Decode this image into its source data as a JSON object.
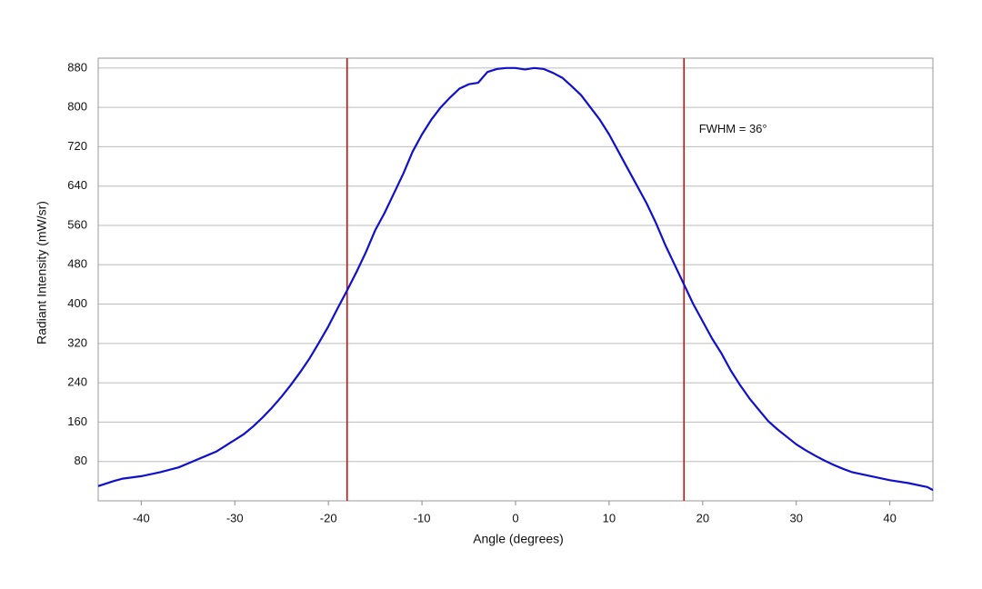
{
  "chart_data": {
    "type": "line",
    "xlabel": "Angle (degrees)",
    "ylabel": "Radiant Intensity (mW/sr)",
    "xlim": [
      -44.6,
      44.6
    ],
    "ylim": [
      0,
      900
    ],
    "xticks": [
      -40,
      -30,
      -20,
      -10,
      0,
      10,
      20,
      30,
      40
    ],
    "yticks": [
      80,
      160,
      240,
      320,
      400,
      480,
      560,
      640,
      720,
      800,
      880
    ],
    "grid": true,
    "x": [
      -44.6,
      -43,
      -42,
      -40,
      -38,
      -36,
      -35,
      -34,
      -33,
      -32,
      -31,
      -30,
      -29,
      -28,
      -27,
      -26,
      -25,
      -24,
      -23,
      -22,
      -21,
      -20,
      -19,
      -18,
      -17,
      -16,
      -15,
      -14,
      -13,
      -12,
      -11,
      -10,
      -9,
      -8,
      -7,
      -6,
      -5,
      -4,
      -3,
      -2,
      -1,
      0,
      1,
      2,
      3,
      4,
      5,
      6,
      7,
      8,
      9,
      10,
      11,
      12,
      13,
      14,
      15,
      16,
      17,
      18,
      19,
      20,
      21,
      22,
      23,
      24,
      25,
      26,
      27,
      28,
      29,
      30,
      31,
      32,
      33,
      34,
      35,
      36,
      38,
      40,
      42,
      44,
      44.6
    ],
    "series": [
      {
        "color": "#1010cc",
        "values": [
          30,
          40,
          45,
          50,
          58,
          68,
          76,
          84,
          92,
          100,
          112,
          124,
          136,
          152,
          170,
          190,
          212,
          236,
          262,
          290,
          322,
          355,
          392,
          428,
          465,
          505,
          550,
          585,
          625,
          665,
          710,
          745,
          775,
          800,
          820,
          838,
          847,
          850,
          872,
          878,
          880,
          880,
          877,
          880,
          878,
          870,
          860,
          843,
          825,
          800,
          775,
          745,
          710,
          675,
          640,
          605,
          565,
          520,
          480,
          440,
          400,
          365,
          330,
          300,
          265,
          235,
          208,
          185,
          162,
          145,
          130,
          115,
          103,
          92,
          82,
          73,
          65,
          58,
          50,
          42,
          36,
          28,
          22
        ]
      }
    ],
    "vlines": [
      {
        "value": -18,
        "color": "#cc1111"
      },
      {
        "value": 18,
        "color": "#cc1111"
      }
    ],
    "annotation": {
      "text": "FWHM = 36°",
      "x": 19.6,
      "y": 755
    }
  }
}
